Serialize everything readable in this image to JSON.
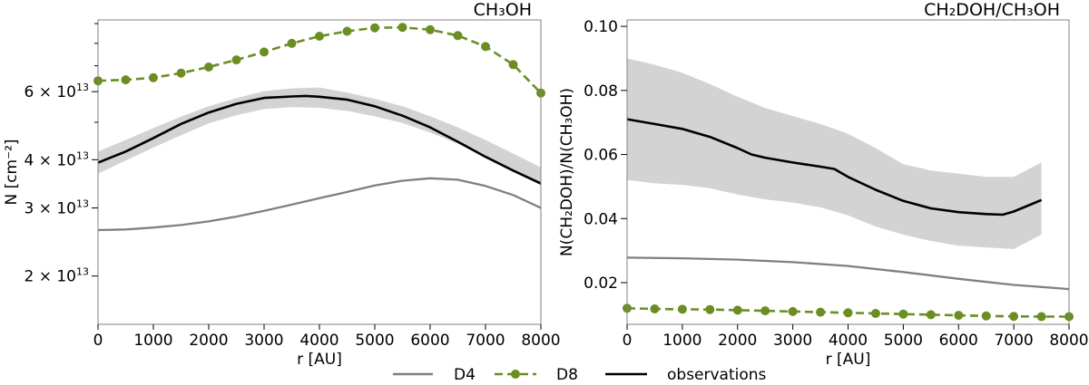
{
  "chart_data": [
    {
      "type": "line",
      "title": "CH₃OH",
      "xlabel": "r [AU]",
      "ylabel": "N [cm⁻²]",
      "yscale": "log",
      "xlim": [
        0,
        8000
      ],
      "ylim": [
        15000000000000.0,
        92000000000000.0
      ],
      "xticks": [
        0,
        1000,
        2000,
        3000,
        4000,
        5000,
        6000,
        7000,
        8000
      ],
      "ytick_labels": [
        {
          "value": 20000000000000.0,
          "mantissa": "2",
          "exponent": "13"
        },
        {
          "value": 30000000000000.0,
          "mantissa": "3",
          "exponent": "13"
        },
        {
          "value": 40000000000000.0,
          "mantissa": "4",
          "exponent": "13"
        },
        {
          "value": 60000000000000.0,
          "mantissa": "6",
          "exponent": "13"
        }
      ],
      "minor_ticks": [
        50000000000000.0,
        70000000000000.0,
        80000000000000.0,
        90000000000000.0
      ],
      "band": {
        "name": "observations uncertainty",
        "x": [
          0,
          500,
          1000,
          1500,
          2000,
          2500,
          3000,
          3500,
          4000,
          4500,
          5000,
          5500,
          6000,
          6500,
          7000,
          7500,
          8000
        ],
        "lower": [
          36800000000000.0,
          39800000000000.0,
          43000000000000.0,
          46300000000000.0,
          49700000000000.0,
          52100000000000.0,
          54100000000000.0,
          54700000000000.0,
          54500000000000.0,
          53500000000000.0,
          51800000000000.0,
          49800000000000.0,
          47000000000000.0,
          44000000000000.0,
          40700000000000.0,
          37400000000000.0,
          34300000000000.0
        ],
        "upper": [
          42000000000000.0,
          45000000000000.0,
          48300000000000.0,
          51700000000000.0,
          55000000000000.0,
          57700000000000.0,
          60200000000000.0,
          61200000000000.0,
          61500000000000.0,
          59700000000000.0,
          57500000000000.0,
          55000000000000.0,
          51800000000000.0,
          48500000000000.0,
          45000000000000.0,
          41500000000000.0,
          38200000000000.0
        ]
      },
      "series": [
        {
          "name": "D4",
          "color": "#808080",
          "x": [
            0,
            500,
            1000,
            1500,
            2000,
            2500,
            3000,
            3500,
            4000,
            4500,
            5000,
            5500,
            6000,
            6500,
            7000,
            7500,
            8000
          ],
          "values": [
            26300000000000.0,
            26400000000000.0,
            26700000000000.0,
            27100000000000.0,
            27700000000000.0,
            28500000000000.0,
            29500000000000.0,
            30600000000000.0,
            31800000000000.0,
            33000000000000.0,
            34300000000000.0,
            35300000000000.0,
            35800000000000.0,
            35500000000000.0,
            34200000000000.0,
            32400000000000.0,
            30000000000000.0
          ]
        },
        {
          "name": "D8",
          "color": "#6b8e23",
          "x": [
            0,
            500,
            1000,
            1500,
            2000,
            2500,
            3000,
            3500,
            4000,
            4500,
            5000,
            5500,
            6000,
            6500,
            7000,
            7500,
            8000
          ],
          "values": [
            64000000000000.0,
            64400000000000.0,
            65200000000000.0,
            67000000000000.0,
            69500000000000.0,
            72500000000000.0,
            76000000000000.0,
            80000000000000.0,
            83500000000000.0,
            86000000000000.0,
            87800000000000.0,
            88000000000000.0,
            86800000000000.0,
            83800000000000.0,
            78500000000000.0,
            70500000000000.0,
            59500000000000.0
          ]
        },
        {
          "name": "observations",
          "color": "#000000",
          "x": [
            0,
            500,
            1000,
            1500,
            2000,
            2500,
            3000,
            3500,
            3750,
            4000,
            4500,
            5000,
            5500,
            6000,
            6500,
            7000,
            7500,
            8000
          ],
          "values": [
            39300000000000.0,
            42000000000000.0,
            45500000000000.0,
            49500000000000.0,
            53000000000000.0,
            55800000000000.0,
            57800000000000.0,
            58300000000000.0,
            58500000000000.0,
            58200000000000.0,
            57200000000000.0,
            55000000000000.0,
            52000000000000.0,
            48500000000000.0,
            44500000000000.0,
            40700000000000.0,
            37500000000000.0,
            34700000000000.0
          ]
        }
      ]
    },
    {
      "type": "line",
      "title": "CH₂DOH/CH₃OH",
      "xlabel": "r [AU]",
      "ylabel": "N(CH₂DOH)/N(CH₃OH)",
      "xlim": [
        0,
        8000
      ],
      "ylim": [
        0.007,
        0.102
      ],
      "xticks": [
        0,
        1000,
        2000,
        3000,
        4000,
        5000,
        6000,
        7000,
        8000
      ],
      "yticks": [
        0.02,
        0.04,
        0.06,
        0.08,
        0.1
      ],
      "ytick_labels": [
        "0.02",
        "0.04",
        "0.06",
        "0.08",
        "0.10"
      ],
      "band": {
        "name": "observations uncertainty",
        "x": [
          0,
          500,
          1000,
          1500,
          2000,
          2500,
          3000,
          3500,
          4000,
          4500,
          5000,
          5500,
          6000,
          6500,
          7000,
          7500
        ],
        "lower": [
          0.052,
          0.051,
          0.0505,
          0.0495,
          0.0475,
          0.046,
          0.045,
          0.0435,
          0.041,
          0.0375,
          0.035,
          0.033,
          0.0315,
          0.031,
          0.0305,
          0.035
        ],
        "upper": [
          0.09,
          0.088,
          0.0855,
          0.082,
          0.078,
          0.0745,
          0.072,
          0.0695,
          0.0665,
          0.062,
          0.057,
          0.055,
          0.054,
          0.053,
          0.053,
          0.0575
        ]
      },
      "series": [
        {
          "name": "D4",
          "color": "#808080",
          "x": [
            0,
            1000,
            2000,
            3000,
            4000,
            5000,
            6000,
            7000,
            8000
          ],
          "values": [
            0.0278,
            0.0276,
            0.0272,
            0.0264,
            0.0252,
            0.0233,
            0.0212,
            0.0193,
            0.018
          ]
        },
        {
          "name": "D8",
          "color": "#6b8e23",
          "x": [
            0,
            500,
            1000,
            1500,
            2000,
            2500,
            3000,
            3500,
            4000,
            4500,
            5000,
            5500,
            6000,
            6500,
            7000,
            7500,
            8000
          ],
          "values": [
            0.012,
            0.0118,
            0.0117,
            0.0116,
            0.0114,
            0.0112,
            0.011,
            0.0108,
            0.0106,
            0.0104,
            0.0102,
            0.01,
            0.0098,
            0.0096,
            0.0095,
            0.0094,
            0.0094
          ]
        },
        {
          "name": "observations",
          "color": "#000000",
          "x": [
            0,
            500,
            1000,
            1500,
            2000,
            2250,
            2500,
            3000,
            3500,
            3750,
            4000,
            4500,
            5000,
            5500,
            6000,
            6500,
            6800,
            7000,
            7500
          ],
          "values": [
            0.071,
            0.0695,
            0.068,
            0.0655,
            0.062,
            0.06,
            0.059,
            0.0575,
            0.0562,
            0.0555,
            0.053,
            0.049,
            0.0455,
            0.0432,
            0.042,
            0.0414,
            0.0412,
            0.0422,
            0.0458
          ]
        }
      ]
    }
  ],
  "legend": {
    "placement": "bottom-center",
    "entries": [
      {
        "name": "D4",
        "color": "#808080",
        "style": "solid"
      },
      {
        "name": "D8",
        "color": "#6b8e23",
        "style": "dashed-dots"
      },
      {
        "name": "observations",
        "color": "#000000",
        "style": "solid"
      }
    ]
  }
}
